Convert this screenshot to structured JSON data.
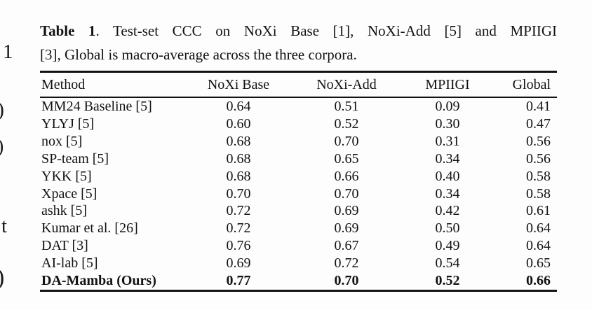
{
  "page": {
    "background": "#fdfdfd",
    "text_color": "#121212"
  },
  "left_margin_fragments": [
    "1",
    ")",
    ")",
    "t",
    ")"
  ],
  "caption": {
    "label": "Table 1",
    "line1_rest": ". Test-set CCC on NoXi Base [1], NoXi-Add [5] and MPIIGI",
    "line2": "[3], Global is macro-average across the three corpora."
  },
  "table": {
    "columns": [
      "Method",
      "NoXi Base",
      "NoXi-Add",
      "MPIIGI",
      "Global"
    ],
    "rows": [
      {
        "method": "MM24 Baseline [5]",
        "values": [
          "0.64",
          "0.51",
          "0.09",
          "0.41"
        ],
        "bold": false
      },
      {
        "method": "YLYJ [5]",
        "values": [
          "0.60",
          "0.52",
          "0.30",
          "0.47"
        ],
        "bold": false
      },
      {
        "method": "nox [5]",
        "values": [
          "0.68",
          "0.70",
          "0.31",
          "0.56"
        ],
        "bold": false
      },
      {
        "method": "SP-team [5]",
        "values": [
          "0.68",
          "0.65",
          "0.34",
          "0.56"
        ],
        "bold": false
      },
      {
        "method": "YKK [5]",
        "values": [
          "0.68",
          "0.66",
          "0.40",
          "0.58"
        ],
        "bold": false
      },
      {
        "method": "Xpace [5]",
        "values": [
          "0.70",
          "0.70",
          "0.34",
          "0.58"
        ],
        "bold": false
      },
      {
        "method": "ashk [5]",
        "values": [
          "0.72",
          "0.69",
          "0.42",
          "0.61"
        ],
        "bold": false
      },
      {
        "method": "Kumar et al. [26]",
        "values": [
          "0.72",
          "0.69",
          "0.50",
          "0.64"
        ],
        "bold": false
      },
      {
        "method": "DAT [3]",
        "values": [
          "0.76",
          "0.67",
          "0.49",
          "0.64"
        ],
        "bold": false
      },
      {
        "method": "AI-lab [5]",
        "values": [
          "0.69",
          "0.72",
          "0.54",
          "0.65"
        ],
        "bold": false
      },
      {
        "method": "DA-Mamba (Ours)",
        "values": [
          "0.77",
          "0.70",
          "0.52",
          "0.66"
        ],
        "bold": true
      }
    ]
  }
}
